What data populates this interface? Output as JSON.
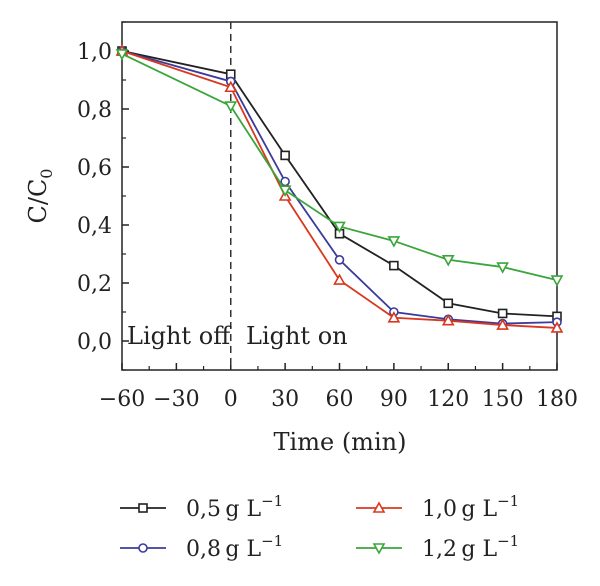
{
  "chart_data": {
    "type": "line",
    "xlabel": "Time (min)",
    "ylabel": {
      "main": "C/C",
      "sub": "0"
    },
    "xlim": [
      -60,
      180
    ],
    "ylim": [
      -0.1,
      1.1
    ],
    "xticks": [
      -60,
      -30,
      0,
      30,
      60,
      90,
      120,
      150,
      180
    ],
    "xtick_labels": [
      "−60",
      "−30",
      "0",
      "30",
      "60",
      "90",
      "120",
      "150",
      "180"
    ],
    "yticks": [
      0.0,
      0.2,
      0.4,
      0.6,
      0.8,
      1.0
    ],
    "ytick_labels": [
      "0,0",
      "0,2",
      "0,4",
      "0,6",
      "0,8",
      "1,0"
    ],
    "grid": false,
    "legend_position": "bottom",
    "annotations": [
      {
        "text": "Light off"
      },
      {
        "text": "Light on"
      }
    ],
    "dashed_divider_x": 0,
    "series": [
      {
        "name": "0,5 g L⁻¹",
        "name_base": "0,5 g L",
        "name_sup": "−1",
        "color": "#222222",
        "marker": "square",
        "x": [
          -60,
          0,
          30,
          60,
          90,
          120,
          150,
          180
        ],
        "y": [
          1.0,
          0.92,
          0.64,
          0.37,
          0.26,
          0.13,
          0.095,
          0.085
        ]
      },
      {
        "name": "0,8 g L⁻¹",
        "name_base": "0,8 g L",
        "name_sup": "−1",
        "color": "#3b3b9c",
        "marker": "circle",
        "x": [
          -60,
          0,
          30,
          60,
          90,
          120,
          150,
          180
        ],
        "y": [
          1.0,
          0.895,
          0.55,
          0.28,
          0.1,
          0.075,
          0.06,
          0.065
        ]
      },
      {
        "name": "1,0 g L⁻¹",
        "name_base": "1,0 g L",
        "name_sup": "−1",
        "color": "#d9381e",
        "marker": "triangle-up",
        "x": [
          -60,
          0,
          30,
          60,
          90,
          120,
          150,
          180
        ],
        "y": [
          1.0,
          0.875,
          0.5,
          0.21,
          0.08,
          0.07,
          0.055,
          0.045
        ]
      },
      {
        "name": "1,2 g L⁻¹",
        "name_base": "1,2 g L",
        "name_sup": "−1",
        "color": "#3aa63a",
        "marker": "triangle-down",
        "x": [
          -60,
          0,
          30,
          60,
          90,
          120,
          150,
          180
        ],
        "y": [
          0.99,
          0.81,
          0.52,
          0.395,
          0.345,
          0.28,
          0.255,
          0.21
        ]
      }
    ]
  }
}
